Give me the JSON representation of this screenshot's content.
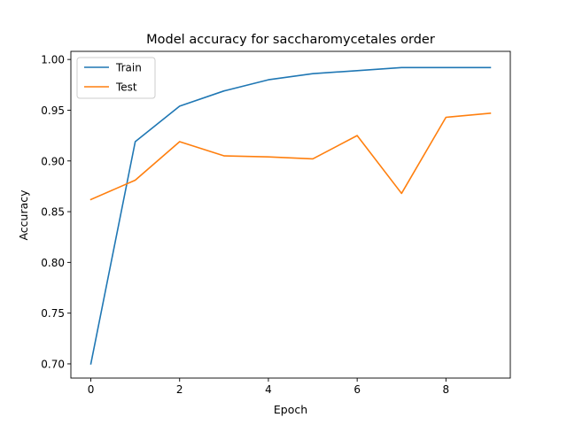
{
  "chart_data": {
    "type": "line",
    "title": "Model accuracy for saccharomycetales order",
    "xlabel": "Epoch",
    "ylabel": "Accuracy",
    "xlim": [
      -0.45,
      9.45
    ],
    "ylim": [
      0.686,
      1.008
    ],
    "x_ticks": [
      0,
      2,
      4,
      6,
      8
    ],
    "x_tick_labels": [
      "0",
      "2",
      "4",
      "6",
      "8"
    ],
    "y_ticks": [
      0.7,
      0.75,
      0.8,
      0.85,
      0.9,
      0.95,
      1.0
    ],
    "y_tick_labels": [
      "0.70",
      "0.75",
      "0.80",
      "0.85",
      "0.90",
      "0.95",
      "1.00"
    ],
    "grid": false,
    "legend_position": "top-left",
    "x": [
      0,
      1,
      2,
      3,
      4,
      5,
      6,
      7,
      8,
      9
    ],
    "series": [
      {
        "name": "Train",
        "color": "#1f77b4",
        "values": [
          0.7,
          0.919,
          0.954,
          0.969,
          0.98,
          0.986,
          0.989,
          0.992,
          0.992,
          0.992
        ]
      },
      {
        "name": "Test",
        "color": "#ff7f0e",
        "values": [
          0.862,
          0.881,
          0.919,
          0.905,
          0.904,
          0.902,
          0.925,
          0.868,
          0.943,
          0.947
        ]
      }
    ]
  }
}
